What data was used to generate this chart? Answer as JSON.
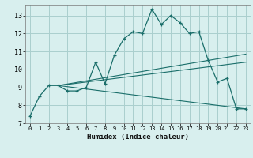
{
  "xlabel": "Humidex (Indice chaleur)",
  "bg_color": "#d8efee",
  "grid_color": "#aacfce",
  "line_color": "#1a6e6a",
  "xlim": [
    -0.5,
    23.5
  ],
  "ylim": [
    7.0,
    13.6
  ],
  "xticks": [
    0,
    1,
    2,
    3,
    4,
    5,
    6,
    7,
    8,
    9,
    10,
    11,
    12,
    13,
    14,
    15,
    16,
    17,
    18,
    19,
    20,
    21,
    22,
    23
  ],
  "yticks": [
    7,
    8,
    9,
    10,
    11,
    12,
    13
  ],
  "curve1_x": [
    0,
    1,
    2,
    3,
    4,
    5,
    6,
    7,
    8,
    9,
    10,
    11,
    12,
    13,
    14,
    15,
    16,
    17,
    18,
    19,
    20,
    21,
    22,
    23
  ],
  "curve1_y": [
    7.4,
    8.5,
    9.1,
    9.1,
    8.8,
    8.8,
    9.0,
    10.4,
    9.2,
    10.8,
    11.7,
    12.1,
    12.0,
    13.35,
    12.5,
    13.0,
    12.6,
    12.0,
    12.1,
    10.5,
    9.3,
    9.5,
    7.8,
    7.8
  ],
  "line2_x": [
    3,
    23
  ],
  "line2_y": [
    9.1,
    10.85
  ],
  "line3_x": [
    3,
    23
  ],
  "line3_y": [
    9.1,
    10.4
  ],
  "line4_x": [
    3,
    23
  ],
  "line4_y": [
    9.1,
    7.8
  ]
}
